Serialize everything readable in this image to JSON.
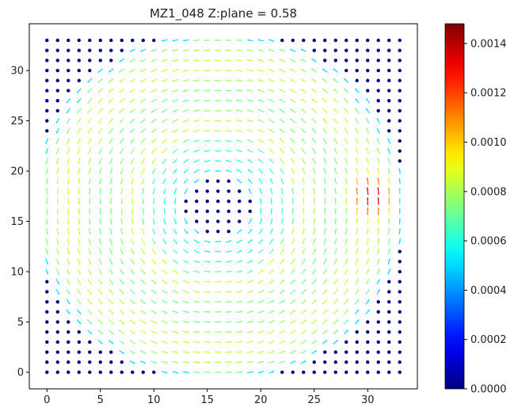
{
  "chart_data": {
    "type": "quiver",
    "title": "MZ1_048   Z:plane = 0.58",
    "xlabel": "",
    "ylabel": "",
    "xlim": [
      -1.65,
      34.65
    ],
    "ylim": [
      -1.65,
      34.65
    ],
    "x_ticks": [
      0,
      5,
      10,
      15,
      20,
      25,
      30
    ],
    "y_ticks": [
      0,
      5,
      10,
      15,
      20,
      25,
      30
    ],
    "x_tick_labels": [
      "0",
      "5",
      "10",
      "15",
      "20",
      "25",
      "30"
    ],
    "y_tick_labels": [
      "0",
      "5",
      "10",
      "15",
      "20",
      "25",
      "30"
    ],
    "grid": false,
    "legend": "none",
    "grid_points": {
      "x_min": 0,
      "x_max": 33,
      "y_min": 0,
      "y_max": 33,
      "step": 1
    },
    "vortex": {
      "center": [
        16,
        16.5
      ],
      "rotation": "counter-clockwise",
      "core_radius": 3.2,
      "outer_radius": 17.5,
      "core_magnitude": 0.0005,
      "body_magnitude": 0.00085,
      "hotspot": {
        "center": [
          30.5,
          17.5
        ],
        "peak_magnitude": 0.00148
      }
    },
    "colorbar": {
      "colormap": "jet",
      "min": 0.0,
      "max": 0.00148,
      "ticks": [
        0.0,
        0.0002,
        0.0004,
        0.0006,
        0.0008,
        0.001,
        0.0012,
        0.0014
      ],
      "tick_labels": [
        "0.0000",
        "0.0002",
        "0.0004",
        "0.0006",
        "0.0008",
        "0.0010",
        "0.0012",
        "0.0014"
      ]
    }
  }
}
